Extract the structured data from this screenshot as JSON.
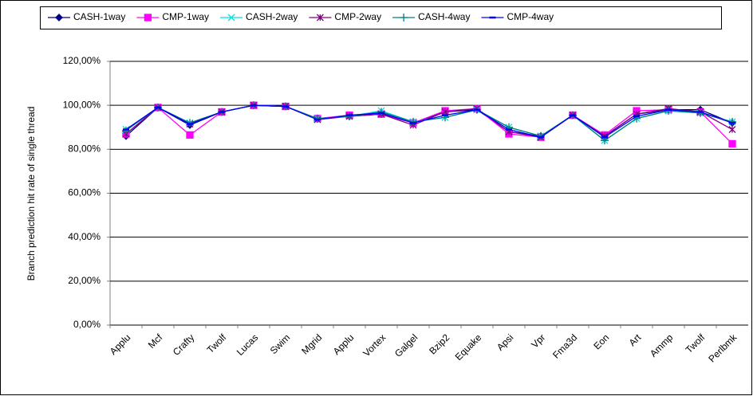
{
  "chart_data": {
    "type": "line",
    "y_label": "Branch prediction hit rate of single thread",
    "categories": [
      "Applu",
      "Mcf",
      "Crafty",
      "Twolf",
      "Lucas",
      "Swim",
      "Mgrid",
      "Applu",
      "Vortex",
      "Galgel",
      "Bzip2",
      "Equake",
      "Apsi",
      "Vpr",
      "Fma3d",
      "Eon",
      "Art",
      "Ammp",
      "Twolf",
      "Perlbmk"
    ],
    "series": [
      {
        "name": "CASH-1way",
        "color": "#000080",
        "marker": "diamond",
        "values": [
          86,
          99,
          91,
          97,
          100,
          99.5,
          94,
          95,
          96,
          92,
          97,
          98,
          88,
          86,
          95.5,
          86,
          96,
          98,
          98,
          92
        ]
      },
      {
        "name": "CMP-1way",
        "color": "#ff00ff",
        "marker": "square",
        "values": [
          87,
          99,
          86.5,
          97,
          100,
          99.5,
          94,
          95.5,
          96,
          92,
          97.5,
          98.5,
          87,
          85.5,
          95.5,
          86.5,
          97.5,
          98,
          97,
          82.5
        ]
      },
      {
        "name": "CASH-2way",
        "color": "#00e0e0",
        "marker": "x",
        "values": [
          89,
          99,
          92,
          97,
          100,
          99.5,
          94,
          95,
          97.5,
          92.5,
          94.5,
          98,
          90,
          86,
          95.5,
          84,
          94,
          97.5,
          96.5,
          92.5
        ]
      },
      {
        "name": "CMP-2way",
        "color": "#800080",
        "marker": "star",
        "values": [
          87,
          99,
          91.5,
          97,
          100,
          99.5,
          93.5,
          95,
          96,
          91,
          97,
          98.5,
          88,
          85.5,
          95.5,
          86,
          96,
          98.5,
          97,
          89
        ]
      },
      {
        "name": "CASH-4way",
        "color": "#008080",
        "marker": "plus",
        "values": [
          88.5,
          99,
          92,
          97,
          100,
          99.5,
          94,
          95,
          97,
          92.5,
          94.5,
          98,
          90,
          86,
          95.5,
          84,
          94,
          97.5,
          96.5,
          92.5
        ]
      },
      {
        "name": "CMP-4way",
        "color": "#0000ff",
        "marker": "dash",
        "values": [
          89,
          99,
          91.5,
          97,
          100,
          99.5,
          93.5,
          95.5,
          96.5,
          92,
          95.5,
          98,
          89,
          85.5,
          95.5,
          85.5,
          95,
          98,
          97,
          92
        ]
      }
    ],
    "ylim": [
      0,
      120
    ],
    "yticks": [
      {
        "value": 0,
        "label": "0,00%"
      },
      {
        "value": 20,
        "label": "20,00%"
      },
      {
        "value": 40,
        "label": "40,00%"
      },
      {
        "value": 60,
        "label": "60,00%"
      },
      {
        "value": 80,
        "label": "80,00%"
      },
      {
        "value": 100,
        "label": "100,00%"
      },
      {
        "value": 120,
        "label": "120,00%"
      }
    ],
    "grid": true,
    "legend": "top"
  }
}
